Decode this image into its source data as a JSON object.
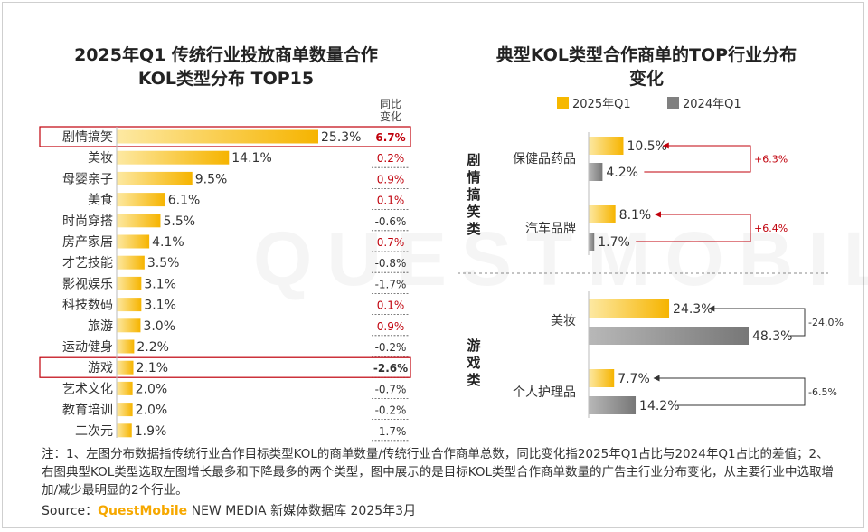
{
  "left_title_line1": "2025年Q1 传统行业投放商单数量合作",
  "left_title_line2": "KOL类型分布  TOP15",
  "right_title_line1": "典型KOL类型合作商单的TOP行业分布",
  "right_title_line2": "变化",
  "change_header_line1": "同比",
  "change_header_line2": "变化",
  "watermark": "QUESTMOBILE",
  "colors": {
    "accent": "#f6b800",
    "gray": "#808080",
    "highlight_box": "#c0000b",
    "positive": "#c0000b",
    "negative": "#333333"
  },
  "chart_data": [
    {
      "type": "bar",
      "orientation": "horizontal",
      "title": "2025年Q1 传统行业投放商单数量合作KOL类型分布  TOP15",
      "categories": [
        "剧情搞笑",
        "美妆",
        "母婴亲子",
        "美食",
        "时尚穿搭",
        "房产家居",
        "才艺技能",
        "影视娱乐",
        "科技数码",
        "旅游",
        "运动健身",
        "游戏",
        "艺术文化",
        "教育培训",
        "二次元"
      ],
      "values": [
        25.3,
        14.1,
        9.5,
        6.1,
        5.5,
        4.1,
        3.5,
        3.1,
        3.1,
        3.0,
        2.2,
        2.1,
        2.0,
        2.0,
        1.9
      ],
      "value_labels": [
        "25.3%",
        "14.1%",
        "9.5%",
        "6.1%",
        "5.5%",
        "4.1%",
        "3.5%",
        "3.1%",
        "3.1%",
        "3.0%",
        "2.2%",
        "2.1%",
        "2.0%",
        "2.0%",
        "1.9%"
      ],
      "yoy_change_labels": [
        "6.7%",
        "0.2%",
        "0.9%",
        "0.1%",
        "-0.6%",
        "0.7%",
        "-0.8%",
        "-1.7%",
        "0.1%",
        "0.9%",
        "-0.2%",
        "-2.6%",
        "-0.7%",
        "-0.2%",
        "-1.7%"
      ],
      "yoy_change": [
        6.7,
        0.2,
        0.9,
        0.1,
        -0.6,
        0.7,
        -0.8,
        -1.7,
        0.1,
        0.9,
        -0.2,
        -2.6,
        -0.7,
        -0.2,
        -1.7
      ],
      "highlighted": [
        "剧情搞笑",
        "游戏"
      ]
    },
    {
      "type": "bar",
      "orientation": "horizontal",
      "title": "典型KOL类型合作商单的TOP行业分布变化",
      "legend": [
        "2025年Q1",
        "2024年Q1"
      ],
      "legend_position": "top",
      "groups": [
        {
          "name": "剧情搞笑类",
          "items": [
            {
              "category": "保健品药品",
              "2025年Q1": 10.5,
              "2024年Q1": 4.2,
              "labels": [
                "10.5%",
                "4.2%"
              ],
              "change_label": "+6.3%"
            },
            {
              "category": "汽车品牌",
              "2025年Q1": 8.1,
              "2024年Q1": 1.7,
              "labels": [
                "8.1%",
                "1.7%"
              ],
              "change_label": "+6.4%"
            }
          ]
        },
        {
          "name": "游戏类",
          "items": [
            {
              "category": "美妆",
              "2025年Q1": 24.3,
              "2024年Q1": 48.3,
              "labels": [
                "24.3%",
                "48.3%"
              ],
              "change_label": "-24.0%"
            },
            {
              "category": "个人护理品",
              "2025年Q1": 7.7,
              "2024年Q1": 14.2,
              "labels": [
                "7.7%",
                "14.2%"
              ],
              "change_label": "-6.5%"
            }
          ]
        }
      ]
    }
  ],
  "notes": "注：1、左图分布数据指传统行业合作目标类型KOL的商单数量/传统行业合作商单总数，同比变化指2025年Q1占比与2024年Q1占比的差值；2、右图典型KOL类型选取左图增长最多和下降最多的两个类型，图中展示的是目标KOL类型合作商单数量的广告主行业分布变化，从主要行业中选取增加/减少最明显的2个行业。",
  "source_prefix": "Source：",
  "source_brand": "QuestMobile",
  "source_suffix": " NEW MEDIA 新媒体数据库 2025年3月"
}
